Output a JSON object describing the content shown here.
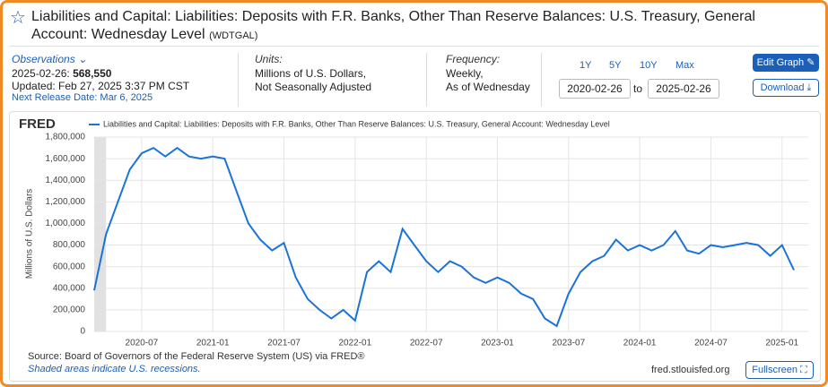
{
  "header": {
    "title": "Liabilities and Capital: Liabilities: Deposits with F.R. Banks, Other Than Reserve Balances: U.S. Treasury, General Account: Wednesday Level",
    "series_id": "(WDTGAL)"
  },
  "info": {
    "observations_label": "Observations",
    "obs_date": "2025-02-26:",
    "obs_value": "568,550",
    "updated": "Updated: Feb 27, 2025 3:37 PM CST",
    "next_release": "Next Release Date: Mar 6, 2025",
    "units_label": "Units:",
    "units_lines": [
      "Millions of U.S. Dollars,",
      "Not Seasonally Adjusted"
    ],
    "frequency_label": "Frequency:",
    "frequency_lines": [
      "Weekly,",
      "As of Wednesday"
    ],
    "ranges": [
      "1Y",
      "5Y",
      "10Y",
      "Max"
    ],
    "date_from": "2020-02-26",
    "date_sep": "to",
    "date_to": "2025-02-26",
    "edit_button": "Edit Graph",
    "download_button": "Download"
  },
  "chart_data": {
    "type": "line",
    "brand": "FRED",
    "x": [
      "2020-03",
      "2020-04",
      "2020-05",
      "2020-06",
      "2020-07",
      "2020-08",
      "2020-09",
      "2020-10",
      "2020-11",
      "2020-12",
      "2021-01",
      "2021-02",
      "2021-03",
      "2021-04",
      "2021-05",
      "2021-06",
      "2021-07",
      "2021-08",
      "2021-09",
      "2021-10",
      "2021-11",
      "2021-12",
      "2022-01",
      "2022-02",
      "2022-03",
      "2022-04",
      "2022-05",
      "2022-06",
      "2022-07",
      "2022-08",
      "2022-09",
      "2022-10",
      "2022-11",
      "2022-12",
      "2023-01",
      "2023-02",
      "2023-03",
      "2023-04",
      "2023-05",
      "2023-06",
      "2023-07",
      "2023-08",
      "2023-09",
      "2023-10",
      "2023-11",
      "2023-12",
      "2024-01",
      "2024-02",
      "2024-03",
      "2024-04",
      "2024-05",
      "2024-06",
      "2024-07",
      "2024-08",
      "2024-09",
      "2024-10",
      "2024-11",
      "2024-12",
      "2025-01",
      "2025-02"
    ],
    "series": [
      {
        "name": "Liabilities and Capital: Liabilities: Deposits with F.R. Banks, Other Than Reserve Balances: U.S. Treasury, General Account: Wednesday Level",
        "color": "#1a73d9",
        "values": [
          380000,
          900000,
          1200000,
          1500000,
          1650000,
          1700000,
          1620000,
          1700000,
          1620000,
          1600000,
          1620000,
          1600000,
          1300000,
          1000000,
          850000,
          750000,
          820000,
          500000,
          300000,
          200000,
          120000,
          200000,
          100000,
          550000,
          650000,
          550000,
          950000,
          800000,
          650000,
          550000,
          650000,
          600000,
          500000,
          450000,
          500000,
          450000,
          350000,
          300000,
          120000,
          50000,
          350000,
          550000,
          650000,
          700000,
          850000,
          750000,
          800000,
          750000,
          800000,
          930000,
          750000,
          720000,
          800000,
          780000,
          800000,
          820000,
          800000,
          700000,
          800000,
          568550
        ]
      }
    ],
    "xlim": [
      "2020-03",
      "2025-02"
    ],
    "xticks": [
      "2020-07",
      "2021-01",
      "2021-07",
      "2022-01",
      "2022-07",
      "2023-01",
      "2023-07",
      "2024-01",
      "2024-07",
      "2025-01"
    ],
    "ylim": [
      0,
      1800000
    ],
    "yticks": [
      0,
      {
        "value": 200000,
        "label": "200,000"
      },
      {
        "value": 400000,
        "label": "400,000"
      },
      {
        "value": 600000,
        "label": "600,000"
      },
      {
        "value": 800000,
        "label": "800,000"
      },
      {
        "value": 1000000,
        "label": "1,000,000"
      },
      {
        "value": 1200000,
        "label": "1,200,000"
      },
      {
        "value": 1400000,
        "label": "1,400,000"
      },
      {
        "value": 1600000,
        "label": "1,600,000"
      },
      {
        "value": 1800000,
        "label": "1,800,000"
      }
    ],
    "ylabel": "Millions of U.S. Dollars",
    "grid": true,
    "recessions": [
      [
        "2020-03",
        "2020-04"
      ]
    ],
    "recession_color": "#e1e1e1"
  },
  "footer": {
    "source": "Source: Board of Governors of the Federal Reserve System (US) via FRED®",
    "note": "Shaded areas indicate U.S. recessions.",
    "site": "fred.stlouisfed.org",
    "fullscreen": "Fullscreen"
  }
}
